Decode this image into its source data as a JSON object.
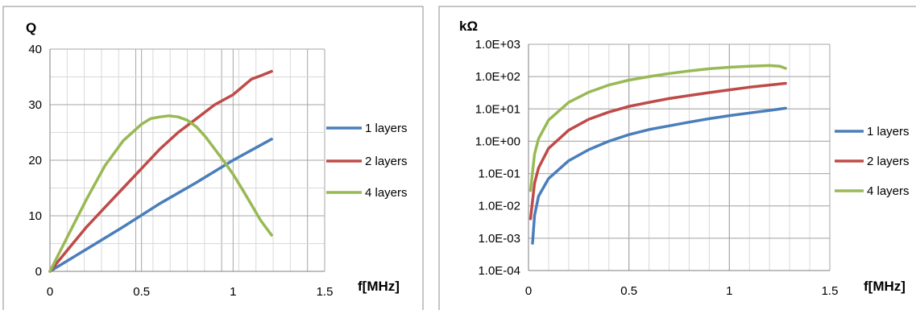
{
  "colors": {
    "series_1": "#4a7ebb",
    "series_2": "#be4b48",
    "series_3": "#98b954",
    "grid": "#a6a6a6",
    "grid_minor": "#d9d9d9",
    "frame": "#8c8c8c"
  },
  "chart_data": [
    {
      "type": "line",
      "title": "",
      "xlabel": "f[MHz]",
      "ylabel": "Q",
      "xlim": [
        0,
        1.5
      ],
      "ylim": [
        0,
        40
      ],
      "x_ticks": [
        "0",
        "0.5",
        "1",
        "1.5"
      ],
      "y_ticks": [
        "0",
        "10",
        "20",
        "30",
        "40"
      ],
      "grid": true,
      "legend": "right",
      "series": [
        {
          "name": "1 layers",
          "color": "#4a7ebb",
          "x": [
            0,
            0.2,
            0.4,
            0.6,
            0.8,
            1.0,
            1.21
          ],
          "y": [
            0,
            4,
            8,
            12.2,
            16,
            20,
            23.8
          ]
        },
        {
          "name": "2 layers",
          "color": "#be4b48",
          "x": [
            0,
            0.1,
            0.2,
            0.3,
            0.4,
            0.5,
            0.6,
            0.7,
            0.8,
            0.9,
            1.0,
            1.05,
            1.1,
            1.15,
            1.21
          ],
          "y": [
            0,
            4,
            8,
            11.5,
            15,
            18.5,
            22,
            25,
            27.5,
            30,
            31.8,
            33.2,
            34.6,
            35.2,
            36
          ]
        },
        {
          "name": "4 layers",
          "color": "#98b954",
          "x": [
            0,
            0.1,
            0.2,
            0.3,
            0.4,
            0.5,
            0.55,
            0.6,
            0.65,
            0.7,
            0.75,
            0.8,
            0.85,
            0.9,
            0.95,
            1.0,
            1.05,
            1.1,
            1.15,
            1.21
          ],
          "y": [
            0,
            6.5,
            13,
            19,
            23.5,
            26.5,
            27.5,
            27.8,
            28,
            27.8,
            27.2,
            26,
            24.2,
            22,
            19.8,
            17.5,
            14.8,
            12,
            9.2,
            6.5
          ]
        }
      ]
    },
    {
      "type": "line",
      "title": "",
      "xlabel": "f[MHz]",
      "ylabel": "kΩ",
      "y_scale": "log",
      "xlim": [
        0,
        1.5
      ],
      "ylim": [
        0.0001,
        1000
      ],
      "x_ticks": [
        "0",
        "0.5",
        "1",
        "1.5"
      ],
      "y_ticks": [
        "1.0E-04",
        "1.0E-03",
        "1.0E-02",
        "1.0E-01",
        "1.0E+00",
        "1.0E+01",
        "1.0E+02",
        "1.0E+03"
      ],
      "grid": true,
      "legend": "right",
      "series": [
        {
          "name": "1 layers",
          "color": "#4a7ebb",
          "x": [
            0.02,
            0.03,
            0.05,
            0.1,
            0.2,
            0.3,
            0.4,
            0.5,
            0.6,
            0.7,
            0.8,
            0.9,
            1.0,
            1.1,
            1.2,
            1.28
          ],
          "y": [
            0.0007,
            0.005,
            0.02,
            0.07,
            0.25,
            0.55,
            1.0,
            1.6,
            2.3,
            3.0,
            3.9,
            5.0,
            6.2,
            7.5,
            9.0,
            10.5
          ]
        },
        {
          "name": "2 layers",
          "color": "#be4b48",
          "x": [
            0.01,
            0.03,
            0.05,
            0.1,
            0.2,
            0.3,
            0.4,
            0.5,
            0.6,
            0.7,
            0.8,
            0.9,
            1.0,
            1.1,
            1.2,
            1.28
          ],
          "y": [
            0.004,
            0.05,
            0.15,
            0.6,
            2.2,
            4.8,
            8,
            12,
            16,
            21,
            26,
            32,
            39,
            47,
            55,
            62
          ]
        },
        {
          "name": "4 layers",
          "color": "#98b954",
          "x": [
            0.01,
            0.03,
            0.05,
            0.1,
            0.2,
            0.3,
            0.4,
            0.5,
            0.6,
            0.7,
            0.8,
            0.9,
            1.0,
            1.1,
            1.2,
            1.25,
            1.28
          ],
          "y": [
            0.03,
            0.4,
            1.2,
            4.5,
            16,
            33,
            55,
            78,
            100,
            125,
            150,
            175,
            195,
            210,
            220,
            210,
            180
          ]
        }
      ]
    }
  ]
}
